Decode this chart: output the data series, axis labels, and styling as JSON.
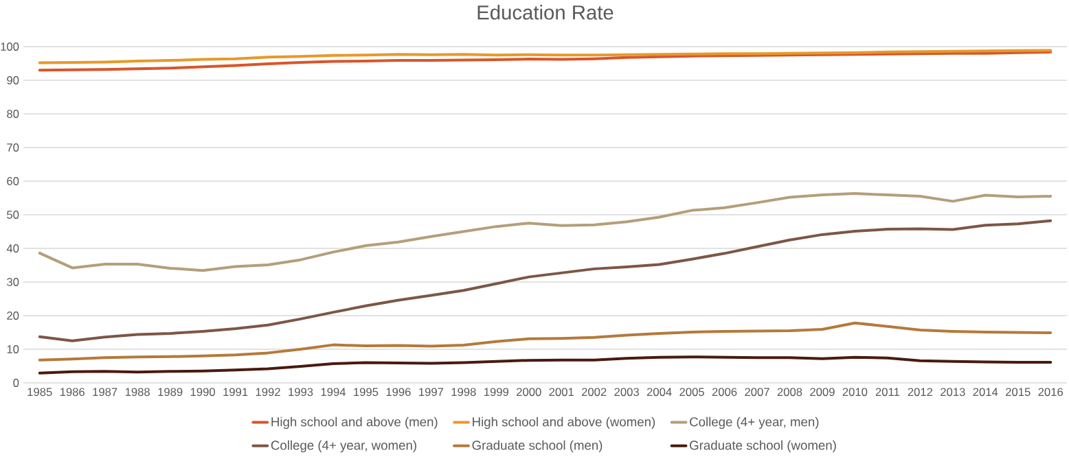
{
  "chart_data": {
    "type": "line",
    "title": "Education Rate",
    "categories": [
      "1985",
      "1986",
      "1987",
      "1988",
      "1989",
      "1990",
      "1991",
      "1992",
      "1993",
      "1994",
      "1995",
      "1996",
      "1997",
      "1998",
      "1999",
      "2000",
      "2001",
      "2002",
      "2003",
      "2004",
      "2005",
      "2006",
      "2007",
      "2008",
      "2009",
      "2010",
      "2011",
      "2012",
      "2013",
      "2014",
      "2015",
      "2016"
    ],
    "series": [
      {
        "name": "High school and above (men)",
        "color": "#d9552b",
        "values": [
          93.0,
          93.1,
          93.2,
          93.4,
          93.6,
          94.0,
          94.4,
          94.9,
          95.3,
          95.6,
          95.7,
          95.9,
          95.9,
          96.0,
          96.1,
          96.3,
          96.2,
          96.4,
          96.8,
          97.0,
          97.2,
          97.3,
          97.4,
          97.5,
          97.6,
          97.7,
          97.8,
          97.9,
          98.0,
          98.0,
          98.2,
          98.4
        ]
      },
      {
        "name": "High school and above (women)",
        "color": "#e6992a",
        "values": [
          95.2,
          95.3,
          95.4,
          95.7,
          95.9,
          96.2,
          96.4,
          96.9,
          97.1,
          97.4,
          97.5,
          97.7,
          97.6,
          97.7,
          97.5,
          97.6,
          97.5,
          97.5,
          97.6,
          97.7,
          97.8,
          97.9,
          97.9,
          98.0,
          98.1,
          98.2,
          98.4,
          98.5,
          98.6,
          98.7,
          98.8,
          98.9
        ]
      },
      {
        "name": "College (4+ year, men)",
        "color": "#b39f7a",
        "values": [
          38.6,
          34.2,
          35.3,
          35.3,
          34.1,
          33.4,
          34.6,
          35.1,
          36.6,
          38.9,
          40.8,
          41.9,
          43.5,
          45.0,
          46.5,
          47.5,
          46.8,
          47.0,
          47.9,
          49.3,
          51.3,
          52.1,
          53.6,
          55.2,
          55.9,
          56.3,
          55.9,
          55.5,
          54.0,
          55.8,
          55.3,
          55.5
        ]
      },
      {
        "name": "College (4+ year, women)",
        "color": "#7d5646",
        "values": [
          13.7,
          12.5,
          13.6,
          14.4,
          14.7,
          15.3,
          16.1,
          17.2,
          19.0,
          21.0,
          22.9,
          24.6,
          26.0,
          27.5,
          29.5,
          31.5,
          32.7,
          33.9,
          34.5,
          35.2,
          36.8,
          38.5,
          40.5,
          42.5,
          44.1,
          45.1,
          45.7,
          45.8,
          45.6,
          46.9,
          47.3,
          48.2
        ]
      },
      {
        "name": "Graduate school (men)",
        "color": "#b47a3a",
        "values": [
          6.8,
          7.1,
          7.5,
          7.7,
          7.8,
          8.0,
          8.3,
          8.9,
          10.0,
          11.3,
          11.0,
          11.1,
          10.9,
          11.2,
          12.3,
          13.1,
          13.2,
          13.5,
          14.2,
          14.7,
          15.1,
          15.3,
          15.4,
          15.5,
          15.9,
          17.8,
          16.8,
          15.7,
          15.3,
          15.1,
          15.0,
          14.9
        ]
      },
      {
        "name": "Graduate school (women)",
        "color": "#4a1a0e",
        "values": [
          2.9,
          3.3,
          3.4,
          3.2,
          3.4,
          3.5,
          3.8,
          4.2,
          4.9,
          5.7,
          6.0,
          5.9,
          5.8,
          6.0,
          6.4,
          6.7,
          6.8,
          6.8,
          7.3,
          7.6,
          7.7,
          7.6,
          7.5,
          7.5,
          7.2,
          7.6,
          7.4,
          6.6,
          6.4,
          6.2,
          6.1,
          6.1
        ]
      }
    ],
    "ylim": [
      0,
      100
    ],
    "yticks": [
      0,
      10,
      20,
      30,
      40,
      50,
      60,
      70,
      80,
      90,
      100
    ],
    "grid": "y",
    "legend": "bottom"
  }
}
